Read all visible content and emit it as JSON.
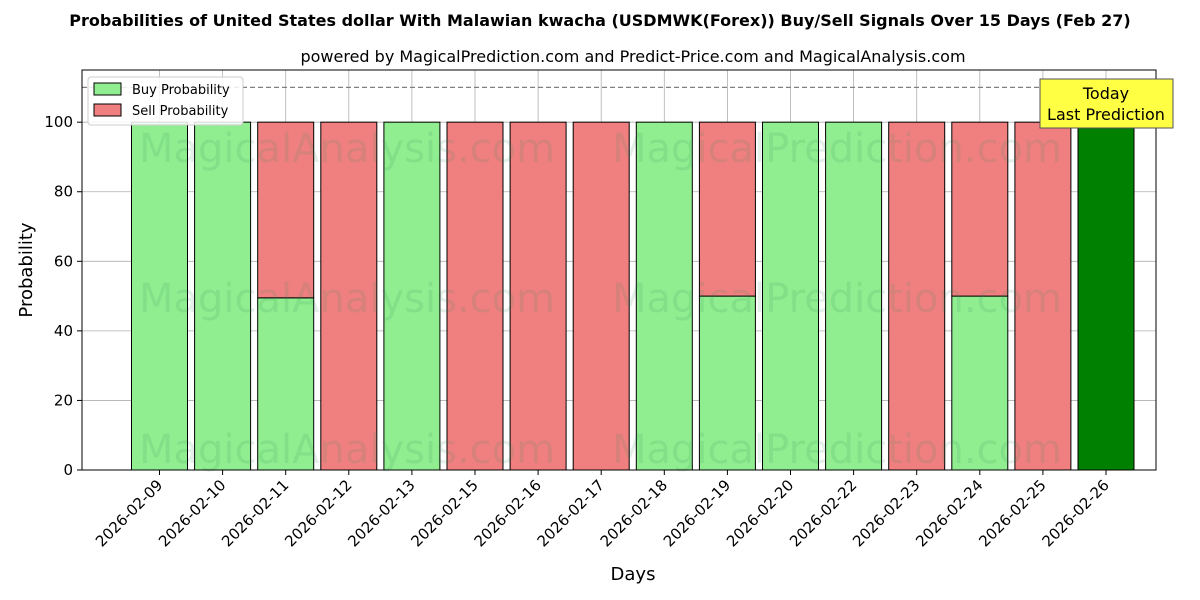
{
  "chart_data": {
    "type": "bar",
    "stacked": true,
    "title": "Probabilities of United States dollar With Malawian kwacha (USDMWK(Forex)) Buy/Sell Signals Over 15 Days (Feb 27)",
    "subtitle": "powered by MagicalPrediction.com and Predict-Price.com and MagicalAnalysis.com",
    "xlabel": "Days",
    "ylabel": "Probability",
    "ylim": [
      0,
      115
    ],
    "yticks": [
      0,
      20,
      40,
      60,
      80,
      100
    ],
    "reference_line": 110,
    "grid": true,
    "legend_position": "top-left",
    "categories": [
      "2026-02-09",
      "2026-02-10",
      "2026-02-11",
      "2026-02-12",
      "2026-02-13",
      "2026-02-15",
      "2026-02-16",
      "2026-02-17",
      "2026-02-18",
      "2026-02-19",
      "2026-02-20",
      "2026-02-22",
      "2026-02-23",
      "2026-02-24",
      "2026-02-25",
      "2026-02-26"
    ],
    "series": [
      {
        "name": "Buy Probability",
        "color": "#90ee90",
        "values": [
          100,
          100,
          49.5,
          0,
          100,
          0,
          0,
          0,
          100,
          50,
          100,
          100,
          0,
          50,
          0,
          100
        ]
      },
      {
        "name": "Sell Probability",
        "color": "#f08080",
        "values": [
          0,
          0,
          50.5,
          100,
          0,
          100,
          100,
          100,
          0,
          50,
          0,
          0,
          100,
          50,
          100,
          0
        ]
      }
    ],
    "highlight": {
      "index": 15,
      "color": "#008000"
    },
    "annotation": {
      "line1": "Today",
      "line2": "Last Prediction",
      "color": "#ffff44"
    },
    "watermarks": [
      "MagicalAnalysis.com",
      "MagicalPrediction.com"
    ]
  }
}
